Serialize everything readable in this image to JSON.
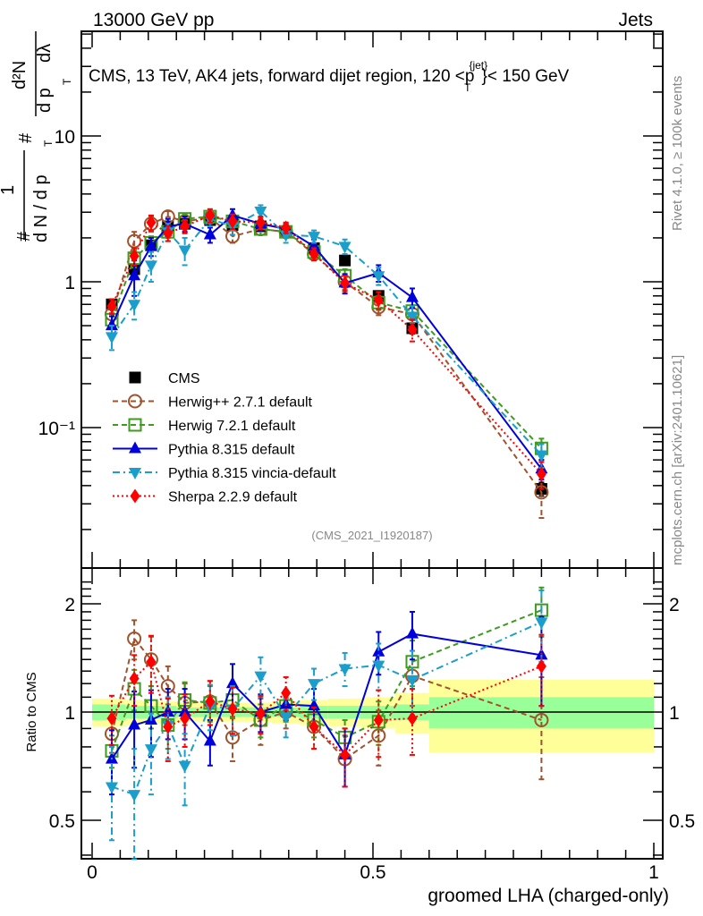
{
  "header": {
    "left": "13000 GeV pp",
    "right": "Jets"
  },
  "side_labels": {
    "rivet": "Rivet 4.1.0, ≥ 100k events",
    "mcplots": "mcplots.cern.ch [arXiv:2401.10621]"
  },
  "chart_data": [
    {
      "type": "line",
      "panel": "main",
      "title": "CMS, 13 TeV, AK4 jets, forward dijet region, 120 <p_T^{jet}< 150 GeV",
      "title_parts": {
        "pre": "CMS, 13 TeV, AK4 jets, forward dijet region, 120 <p",
        "sup": "{jet}",
        "sub": "T",
        "post": "}< 150 GeV"
      },
      "ylabel": "1/dN/dp_T dN/dp_T dλ",
      "ylabel_parts": {
        "hash": "#",
        "one": "1",
        "den": "d N / d p",
        "num_top": "d²N",
        "num_den": "d p",
        "sub": "T",
        "dl": "dλ"
      },
      "xlabel": "",
      "yscale": "log",
      "ylim": [
        0.018,
        60
      ],
      "xlim": [
        -0.02,
        1.02
      ],
      "ytick_labels": [
        "10",
        "1",
        "10⁻¹"
      ],
      "ytick_values": [
        10,
        1,
        0.1
      ],
      "annotation": "(CMS_2021_I1920187)",
      "legend_position": "center-left",
      "x": [
        0.035,
        0.075,
        0.105,
        0.135,
        0.165,
        0.21,
        0.25,
        0.3,
        0.345,
        0.395,
        0.45,
        0.51,
        0.57,
        0.8
      ],
      "series": [
        {
          "name": "CMS",
          "color": "#000000",
          "marker": "square-filled",
          "line": "none",
          "values": [
            0.7,
            1.22,
            1.78,
            2.4,
            2.5,
            2.65,
            2.45,
            2.4,
            2.2,
            1.7,
            1.4,
            0.8,
            0.48,
            0.038
          ],
          "err": [
            0.05,
            0.08,
            0.1,
            0.12,
            0.12,
            0.12,
            0.12,
            0.12,
            0.1,
            0.1,
            0.08,
            0.06,
            0.04,
            0.004
          ]
        },
        {
          "name": "Herwig++ 2.7.1 default",
          "color": "#a0522d",
          "marker": "circle-open",
          "line": "dashed",
          "values": [
            0.6,
            1.9,
            2.5,
            2.8,
            2.6,
            2.75,
            2.05,
            2.3,
            2.2,
            1.55,
            1.0,
            0.67,
            0.6,
            0.036
          ],
          "err": [
            0.08,
            0.3,
            0.3,
            0.25,
            0.2,
            0.2,
            0.2,
            0.2,
            0.2,
            0.15,
            0.12,
            0.08,
            0.08,
            0.012
          ]
        },
        {
          "name": "Herwig 7.2.1 default",
          "color": "#3d9b1f",
          "marker": "square-open",
          "line": "dashed",
          "values": [
            0.55,
            1.45,
            1.85,
            2.2,
            2.7,
            2.8,
            2.6,
            2.3,
            2.2,
            1.6,
            1.1,
            0.72,
            0.63,
            0.072
          ],
          "err": [
            0.06,
            0.2,
            0.2,
            0.2,
            0.2,
            0.2,
            0.2,
            0.2,
            0.2,
            0.15,
            0.12,
            0.08,
            0.06,
            0.012
          ]
        },
        {
          "name": "Pythia 8.315 default",
          "color": "#0000dd",
          "marker": "triangle-up",
          "line": "solid",
          "values": [
            0.5,
            1.1,
            1.75,
            2.4,
            2.5,
            2.1,
            2.85,
            2.5,
            2.3,
            1.75,
            0.98,
            1.15,
            0.78,
            0.052
          ],
          "err": [
            0.08,
            0.3,
            0.25,
            0.3,
            0.3,
            0.25,
            0.3,
            0.25,
            0.2,
            0.2,
            0.15,
            0.15,
            0.12,
            0.008
          ]
        },
        {
          "name": "Pythia 8.315 vincia-default",
          "color": "#1a9ecb",
          "marker": "triangle-down",
          "line": "dashdot",
          "values": [
            0.42,
            0.7,
            1.3,
            2.2,
            1.65,
            2.7,
            2.4,
            3.05,
            2.1,
            2.05,
            1.75,
            1.1,
            0.58,
            0.065
          ],
          "err": [
            0.08,
            0.15,
            0.3,
            0.3,
            0.35,
            0.3,
            0.3,
            0.3,
            0.25,
            0.2,
            0.2,
            0.15,
            0.1,
            0.012
          ]
        },
        {
          "name": "Sherpa 2.2.9 default",
          "color": "#ff0000",
          "marker": "diamond",
          "line": "dotted",
          "values": [
            0.68,
            1.5,
            2.55,
            2.15,
            2.4,
            2.85,
            2.6,
            2.55,
            2.35,
            1.55,
            0.98,
            0.75,
            0.47,
            0.048
          ],
          "err": [
            0.08,
            0.2,
            0.3,
            0.25,
            0.25,
            0.3,
            0.3,
            0.25,
            0.2,
            0.15,
            0.12,
            0.1,
            0.08,
            0.01
          ]
        }
      ]
    },
    {
      "type": "line",
      "panel": "ratio",
      "ylabel": "Ratio to CMS",
      "xlabel": "groomed LHA (charged-only)",
      "yscale": "log",
      "ylim": [
        0.4,
        2.4
      ],
      "xlim": [
        -0.02,
        1.02
      ],
      "ytick_labels": [
        "2",
        "1",
        "0.5"
      ],
      "ytick_values": [
        2,
        1,
        0.5
      ],
      "xtick_labels": [
        "0",
        "0.5",
        "1"
      ],
      "xtick_values": [
        0,
        0.5,
        1
      ],
      "band_edges": [
        0.0,
        0.06,
        0.09,
        0.12,
        0.15,
        0.19,
        0.23,
        0.27,
        0.32,
        0.37,
        0.42,
        0.48,
        0.54,
        0.6,
        1.0
      ],
      "band_inner": [
        0.05,
        0.04,
        0.04,
        0.04,
        0.03,
        0.03,
        0.03,
        0.03,
        0.03,
        0.04,
        0.04,
        0.04,
        0.05,
        0.1
      ],
      "band_outer": [
        0.09,
        0.08,
        0.07,
        0.07,
        0.06,
        0.06,
        0.06,
        0.06,
        0.07,
        0.08,
        0.09,
        0.1,
        0.13,
        0.23
      ],
      "x": [
        0.035,
        0.075,
        0.105,
        0.135,
        0.165,
        0.21,
        0.25,
        0.3,
        0.345,
        0.395,
        0.45,
        0.51,
        0.57,
        0.8
      ],
      "series": [
        {
          "name": "Herwig++ 2.7.1 default",
          "color": "#a0522d",
          "values": [
            0.87,
            1.6,
            1.4,
            1.18,
            1.06,
            1.07,
            0.85,
            0.95,
            1.0,
            0.91,
            0.74,
            0.86,
            1.26,
            0.95
          ],
          "err": [
            0.1,
            0.2,
            0.22,
            0.16,
            0.14,
            0.15,
            0.12,
            0.14,
            0.1,
            0.12,
            0.12,
            0.15,
            0.22,
            0.3
          ]
        },
        {
          "name": "Herwig 7.2.1 default",
          "color": "#3d9b1f",
          "values": [
            0.78,
            1.16,
            1.04,
            0.92,
            1.08,
            1.06,
            1.08,
            0.95,
            1.04,
            0.95,
            0.85,
            0.94,
            1.38,
            1.92
          ],
          "err": [
            0.08,
            0.15,
            0.14,
            0.13,
            0.13,
            0.12,
            0.12,
            0.1,
            0.1,
            0.1,
            0.1,
            0.13,
            0.2,
            0.3
          ]
        },
        {
          "name": "Pythia 8.315 default",
          "color": "#0000dd",
          "values": [
            0.74,
            0.92,
            0.95,
            1.0,
            1.0,
            0.83,
            1.2,
            1.0,
            1.05,
            1.04,
            0.76,
            1.47,
            1.65,
            1.44
          ],
          "err": [
            0.15,
            0.22,
            0.2,
            0.16,
            0.16,
            0.12,
            0.16,
            0.12,
            0.1,
            0.12,
            0.14,
            0.2,
            0.25,
            0.4
          ]
        },
        {
          "name": "Pythia 8.315 vincia-default",
          "color": "#1a9ecb",
          "values": [
            0.62,
            0.59,
            0.79,
            0.92,
            0.71,
            1.04,
            1.02,
            1.26,
            0.97,
            1.2,
            1.32,
            1.35,
            1.23,
            1.78
          ],
          "err": [
            0.18,
            0.2,
            0.2,
            0.18,
            0.16,
            0.15,
            0.16,
            0.16,
            0.12,
            0.12,
            0.14,
            0.2,
            0.25,
            0.4
          ]
        },
        {
          "name": "Sherpa 2.2.9 default",
          "color": "#ff0000",
          "values": [
            0.96,
            1.24,
            1.38,
            0.91,
            0.96,
            1.07,
            1.02,
            0.99,
            1.13,
            0.91,
            0.76,
            0.95,
            0.96,
            1.34
          ],
          "err": [
            0.15,
            0.2,
            0.25,
            0.18,
            0.16,
            0.15,
            0.15,
            0.12,
            0.12,
            0.12,
            0.14,
            0.2,
            0.2,
            0.3
          ]
        }
      ]
    }
  ]
}
